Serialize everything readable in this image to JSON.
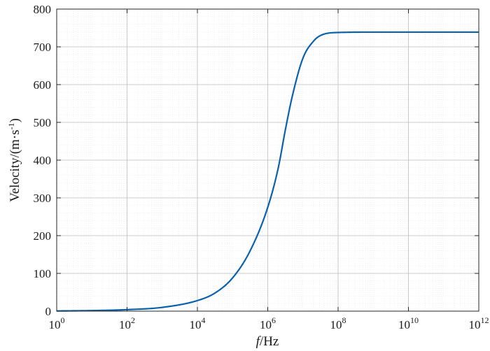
{
  "chart_data": {
    "type": "line",
    "title": "",
    "xlabel_italic": "f",
    "xlabel_rest": "/Hz",
    "ylabel": "Velocity/(m·s",
    "ylabel_sup": "-1",
    "ylabel_close": ")",
    "x_scale": "log",
    "xlim": [
      1,
      1000000000000
    ],
    "ylim": [
      0,
      800
    ],
    "grid": true,
    "x_ticks": [
      {
        "base": "10",
        "exp": "0",
        "value": 1
      },
      {
        "base": "10",
        "exp": "2",
        "value": 100
      },
      {
        "base": "10",
        "exp": "4",
        "value": 10000
      },
      {
        "base": "10",
        "exp": "6",
        "value": 1000000
      },
      {
        "base": "10",
        "exp": "8",
        "value": 100000000
      },
      {
        "base": "10",
        "exp": "10",
        "value": 10000000000
      },
      {
        "base": "10",
        "exp": "12",
        "value": 1000000000000
      }
    ],
    "y_ticks": [
      "0",
      "100",
      "200",
      "300",
      "400",
      "500",
      "600",
      "700",
      "800"
    ],
    "series": [
      {
        "color": "#0a62ad",
        "x": [
          1,
          10,
          100,
          1000,
          10000,
          31623,
          100000,
          316228,
          1000000,
          1995262,
          3162278,
          5011872,
          10000000,
          19952623,
          31622777,
          100000000,
          1000000000,
          10000000000,
          1000000000000
        ],
        "y": [
          0.5,
          1.5,
          4,
          10,
          28,
          48,
          88,
          160,
          275,
          380,
          480,
          570,
          670,
          715,
          730,
          738,
          739,
          739,
          739
        ]
      }
    ]
  }
}
